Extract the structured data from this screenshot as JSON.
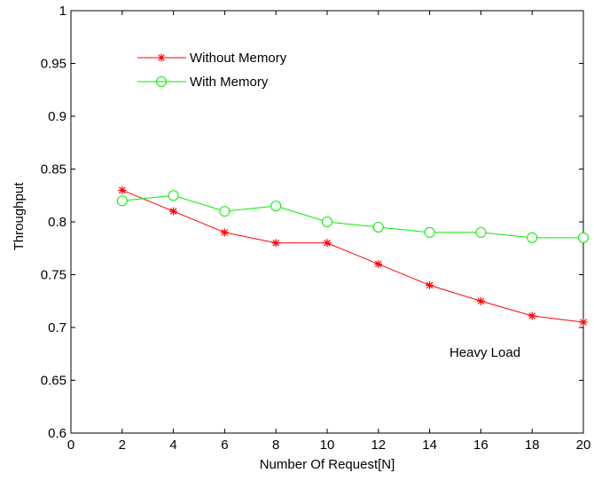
{
  "chart_data": {
    "type": "line",
    "xlabel": "Number Of Request[N]",
    "ylabel": "Throughput",
    "xlim": [
      0,
      20
    ],
    "ylim": [
      0.6,
      1
    ],
    "xticks": [
      0,
      2,
      4,
      6,
      8,
      10,
      12,
      14,
      16,
      18,
      20
    ],
    "yticks": [
      0.6,
      0.65,
      0.7,
      0.75,
      0.8,
      0.85,
      0.9,
      0.95,
      1
    ],
    "xtick_labels": [
      "0",
      "2",
      "4",
      "6",
      "8",
      "10",
      "12",
      "14",
      "16",
      "18",
      "20"
    ],
    "ytick_labels": [
      "0.6",
      "0.65",
      "0.7",
      "0.75",
      "0.8",
      "0.85",
      "0.9",
      "0.95",
      "1"
    ],
    "grid": false,
    "legend_position": "top-left",
    "annotation": "Heavy Load",
    "series": [
      {
        "name": "Without Memory",
        "color": "#ff0000",
        "marker": "asterisk",
        "line_style": "solid",
        "x": [
          2,
          4,
          6,
          8,
          10,
          12,
          14,
          16,
          18,
          20
        ],
        "y": [
          0.83,
          0.81,
          0.79,
          0.78,
          0.78,
          0.76,
          0.74,
          0.725,
          0.711,
          0.705
        ]
      },
      {
        "name": "With Memory",
        "color": "#00ee00",
        "marker": "circle",
        "line_style": "solid",
        "x": [
          2,
          4,
          6,
          8,
          10,
          12,
          14,
          16,
          18,
          20
        ],
        "y": [
          0.82,
          0.825,
          0.81,
          0.815,
          0.8,
          0.795,
          0.79,
          0.79,
          0.785,
          0.785
        ]
      }
    ]
  }
}
